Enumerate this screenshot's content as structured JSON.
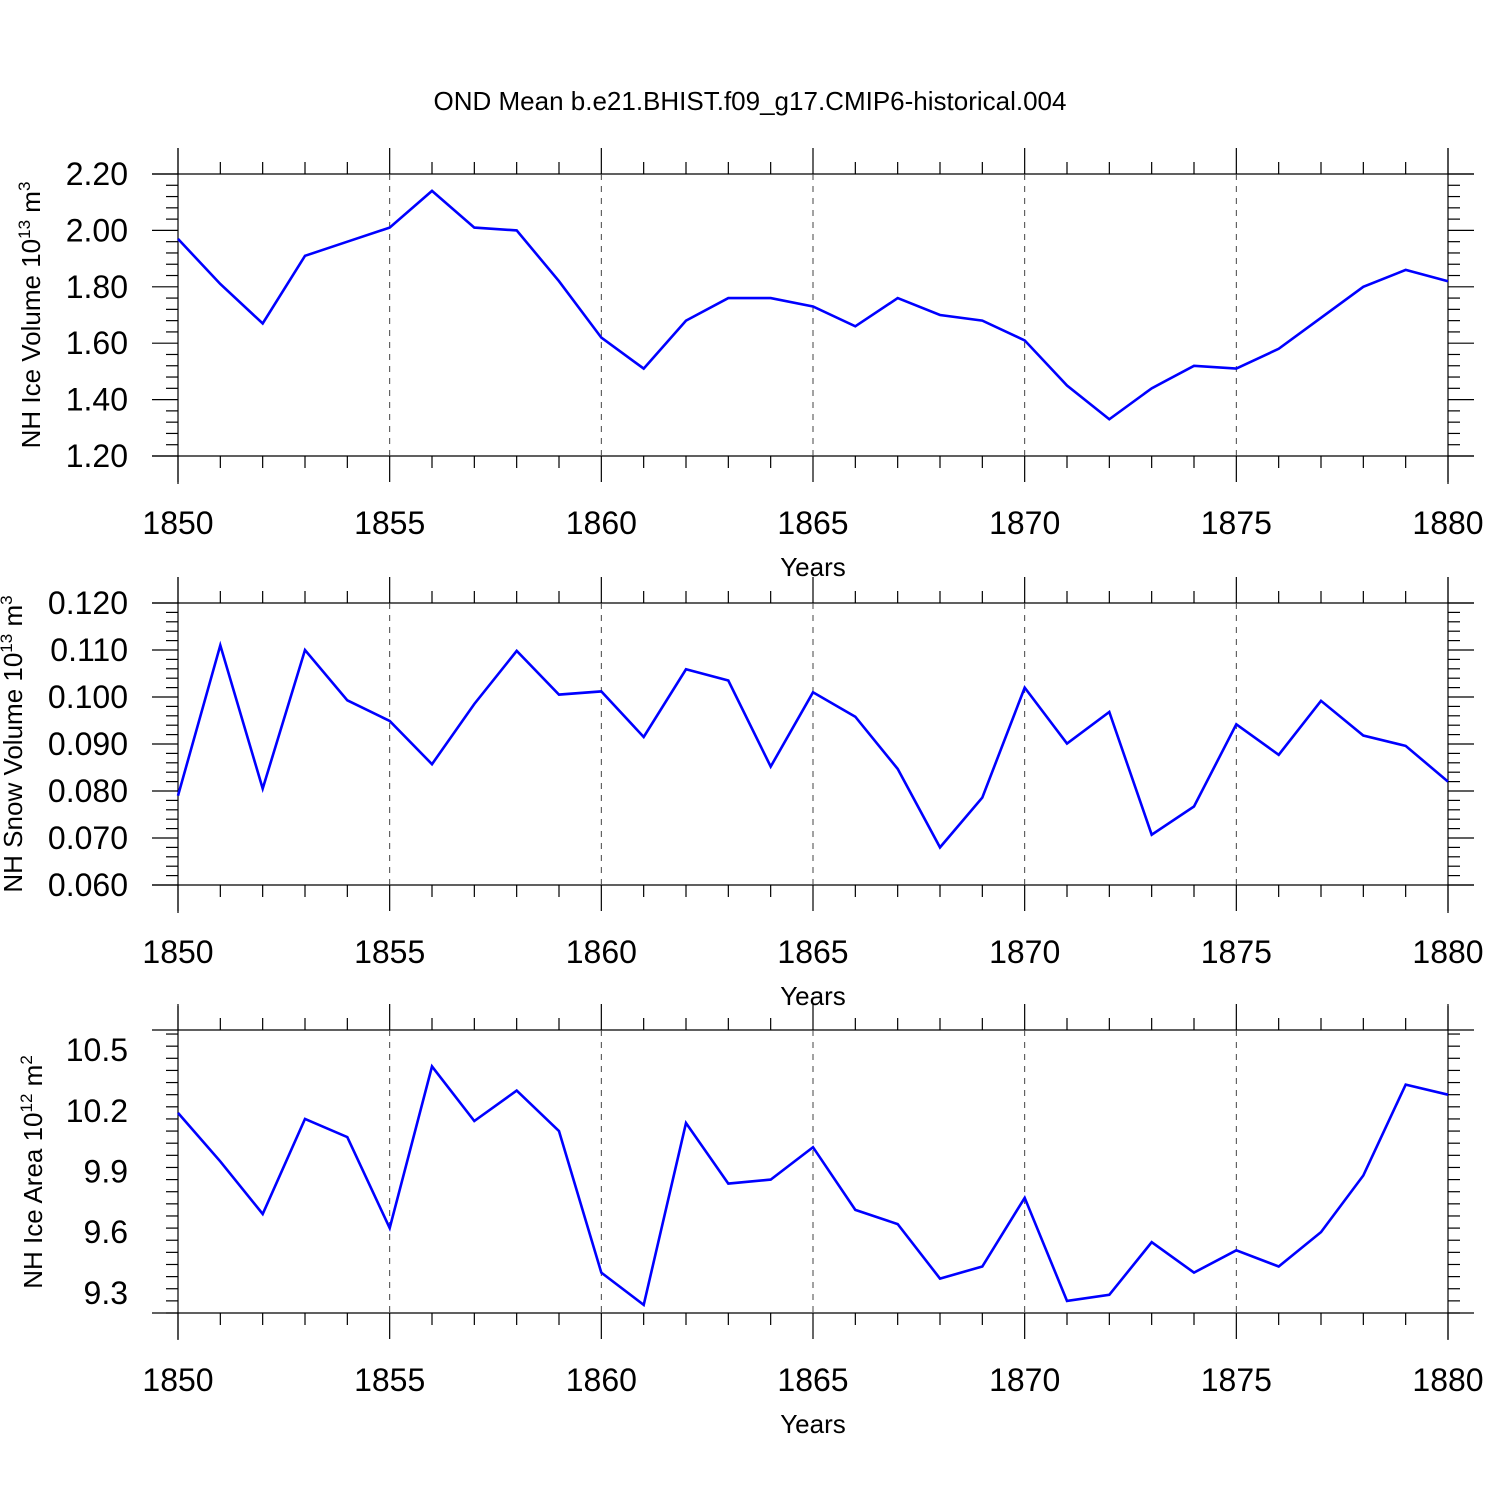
{
  "title": "OND Mean b.e21.BHIST.f09_g17.CMIP6-historical.004",
  "colors": {
    "series": "#0000ff",
    "axes": "#000000",
    "grid": "#444444"
  },
  "chart_data": [
    {
      "type": "line",
      "title": "OND Mean b.e21.BHIST.f09_g17.CMIP6-historical.004",
      "ylabel": "NH Ice Volume 10",
      "ylabel_exp": "13",
      "ylabel_unit": " m",
      "ylabel_unit_exp": "3",
      "xlabel": "Years",
      "xlim": [
        1850,
        1880
      ],
      "ylim": [
        1.2,
        2.2
      ],
      "x_ticks": [
        1850,
        1855,
        1860,
        1865,
        1870,
        1875,
        1880
      ],
      "x_tick_labels": [
        "1850",
        "1855",
        "1860",
        "1865",
        "1870",
        "1875",
        "1880"
      ],
      "y_ticks": [
        1.2,
        1.4,
        1.6,
        1.8,
        2.0,
        2.2
      ],
      "y_tick_labels": [
        "1.20",
        "1.40",
        "1.60",
        "1.80",
        "2.00",
        "2.20"
      ],
      "grid": "vertical dashed at major x ticks",
      "x": [
        1850,
        1851,
        1852,
        1853,
        1854,
        1855,
        1856,
        1857,
        1858,
        1859,
        1860,
        1861,
        1862,
        1863,
        1864,
        1865,
        1866,
        1867,
        1868,
        1869,
        1870,
        1871,
        1872,
        1873,
        1874,
        1875,
        1876,
        1877,
        1878,
        1879,
        1880
      ],
      "series": [
        {
          "values": [
            1.97,
            1.81,
            1.67,
            1.91,
            1.96,
            2.01,
            2.14,
            2.01,
            2.0,
            1.82,
            1.62,
            1.51,
            1.68,
            1.76,
            1.76,
            1.73,
            1.66,
            1.76,
            1.7,
            1.68,
            1.61,
            1.45,
            1.33,
            1.44,
            1.52,
            1.51,
            1.58,
            1.69,
            1.8,
            1.86,
            1.82
          ]
        }
      ]
    },
    {
      "type": "line",
      "ylabel": "NH Snow Volume 10",
      "ylabel_exp": "13",
      "ylabel_unit": " m",
      "ylabel_unit_exp": "3",
      "xlabel": "Years",
      "xlim": [
        1850,
        1880
      ],
      "ylim": [
        0.06,
        0.12
      ],
      "x_ticks": [
        1850,
        1855,
        1860,
        1865,
        1870,
        1875,
        1880
      ],
      "x_tick_labels": [
        "1850",
        "1855",
        "1860",
        "1865",
        "1870",
        "1875",
        "1880"
      ],
      "y_ticks": [
        0.06,
        0.07,
        0.08,
        0.09,
        0.1,
        0.11,
        0.12
      ],
      "y_tick_labels": [
        "0.060",
        "0.070",
        "0.080",
        "0.090",
        "0.100",
        "0.110",
        "0.120"
      ],
      "grid": "vertical dashed at major x ticks",
      "x": [
        1850,
        1851,
        1852,
        1853,
        1854,
        1855,
        1856,
        1857,
        1858,
        1859,
        1860,
        1861,
        1862,
        1863,
        1864,
        1865,
        1866,
        1867,
        1868,
        1869,
        1870,
        1871,
        1872,
        1873,
        1874,
        1875,
        1876,
        1877,
        1878,
        1879,
        1880
      ],
      "series": [
        {
          "values": [
            0.079,
            0.111,
            0.0805,
            0.11,
            0.0993,
            0.0949,
            0.0857,
            0.0985,
            0.1098,
            0.1005,
            0.1012,
            0.0915,
            0.1059,
            0.1035,
            0.0852,
            0.101,
            0.0958,
            0.0847,
            0.068,
            0.0786,
            0.102,
            0.0901,
            0.0968,
            0.0707,
            0.0767,
            0.0942,
            0.0877,
            0.0992,
            0.0918,
            0.0896,
            0.082
          ]
        }
      ]
    },
    {
      "type": "line",
      "ylabel": "NH Ice Area 10",
      "ylabel_exp": "12",
      "ylabel_unit": " m",
      "ylabel_unit_exp": "2",
      "xlabel": "Years",
      "xlim": [
        1850,
        1880
      ],
      "ylim": [
        9.2,
        10.6
      ],
      "x_ticks": [
        1850,
        1855,
        1860,
        1865,
        1870,
        1875,
        1880
      ],
      "x_tick_labels": [
        "1850",
        "1855",
        "1860",
        "1865",
        "1870",
        "1875",
        "1880"
      ],
      "y_ticks": [
        9.3,
        9.6,
        9.9,
        10.2,
        10.5
      ],
      "y_tick_labels": [
        "9.3",
        "9.6",
        "9.9",
        "10.2",
        "10.5"
      ],
      "grid": "vertical dashed at major x ticks",
      "x": [
        1850,
        1851,
        1852,
        1853,
        1854,
        1855,
        1856,
        1857,
        1858,
        1859,
        1860,
        1861,
        1862,
        1863,
        1864,
        1865,
        1866,
        1867,
        1868,
        1869,
        1870,
        1871,
        1872,
        1873,
        1874,
        1875,
        1876,
        1877,
        1878,
        1879,
        1880
      ],
      "series": [
        {
          "values": [
            10.19,
            9.95,
            9.69,
            10.16,
            10.07,
            9.62,
            10.42,
            10.15,
            10.3,
            10.1,
            9.4,
            9.24,
            10.14,
            9.84,
            9.86,
            10.02,
            9.71,
            9.64,
            9.37,
            9.43,
            9.77,
            9.26,
            9.29,
            9.55,
            9.4,
            9.51,
            9.43,
            9.6,
            9.88,
            10.33,
            10.28
          ]
        }
      ]
    }
  ]
}
